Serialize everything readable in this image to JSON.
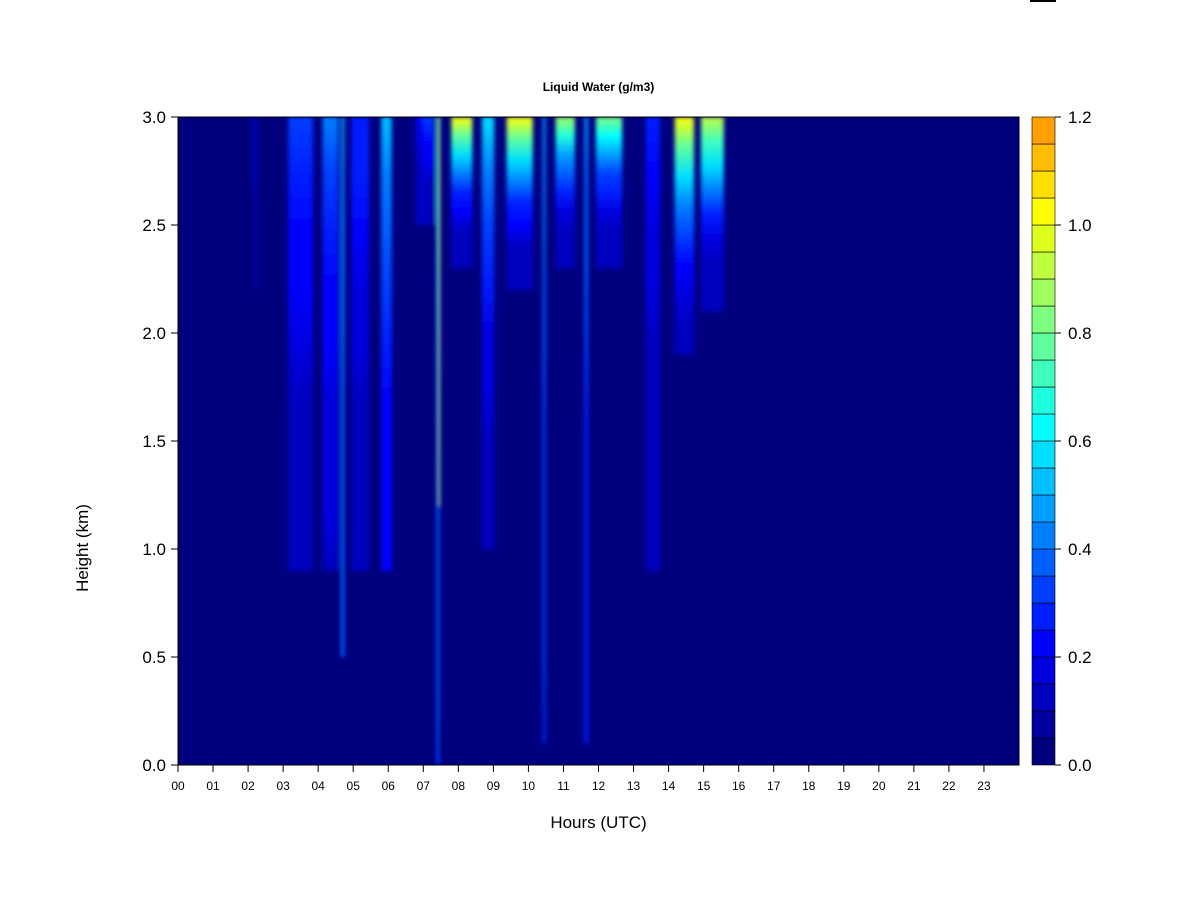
{
  "chart_data": {
    "type": "heatmap",
    "title": "Liquid Water (g/m3)",
    "xlabel": "Hours (UTC)",
    "ylabel": "Height (km)",
    "x_tick_labels": [
      "00",
      "01",
      "02",
      "03",
      "04",
      "05",
      "06",
      "07",
      "08",
      "09",
      "10",
      "11",
      "12",
      "13",
      "14",
      "15",
      "16",
      "17",
      "18",
      "19",
      "20",
      "21",
      "22",
      "23"
    ],
    "y_tick_labels": [
      "0.0",
      "0.5",
      "1.0",
      "1.5",
      "2.0",
      "2.5",
      "3.0"
    ],
    "xlim": [
      0,
      24
    ],
    "ylim": [
      0,
      3.0
    ],
    "colorbar": {
      "min": 0.0,
      "max": 1.2,
      "step": 0.05,
      "tick_labels": [
        "0.0",
        "0.2",
        "0.4",
        "0.6",
        "0.8",
        "1.0",
        "1.2"
      ],
      "colors": [
        "#00007f",
        "#00009f",
        "#0000bf",
        "#0000df",
        "#0000ff",
        "#001fff",
        "#003fff",
        "#005fff",
        "#007fff",
        "#009fff",
        "#00bfff",
        "#00dfff",
        "#00ffff",
        "#1fffdf",
        "#3fffbf",
        "#5fff9f",
        "#7fff7f",
        "#9fff5f",
        "#bfff3f",
        "#dfff1f",
        "#ffff00",
        "#ffdf00",
        "#ffbf00",
        "#ff9f00",
        "#ff7f00",
        "#ff5f00",
        "#ff3f00",
        "#ff1f00",
        "#ff0000",
        "#df0000",
        "#bf0000",
        "#9f0000",
        "#7f0000"
      ]
    },
    "background_value": 0.0,
    "features": [
      {
        "kind": "column",
        "hour": 2.2,
        "width": 0.12,
        "base_km": 2.2,
        "top_value": 0.15,
        "low_value": 0.08
      },
      {
        "kind": "column",
        "hour": 3.5,
        "width": 0.7,
        "base_km": 0.9,
        "top_value": 0.35,
        "low_value": 0.12
      },
      {
        "kind": "column",
        "hour": 4.35,
        "width": 0.45,
        "base_km": 0.9,
        "top_value": 0.4,
        "low_value": 0.15
      },
      {
        "kind": "column",
        "hour": 4.7,
        "width": 0.1,
        "base_km": 0.5,
        "top_value": 0.45,
        "low_value": 0.38
      },
      {
        "kind": "column",
        "hour": 5.2,
        "width": 0.5,
        "base_km": 0.9,
        "top_value": 0.3,
        "low_value": 0.12
      },
      {
        "kind": "column",
        "hour": 5.95,
        "width": 0.3,
        "base_km": 0.9,
        "top_value": 0.5,
        "low_value": 0.2
      },
      {
        "kind": "column",
        "hour": 6.9,
        "width": 0.25,
        "base_km": 2.5,
        "top_value": 0.2,
        "low_value": 0.1
      },
      {
        "kind": "column",
        "hour": 7.15,
        "width": 0.3,
        "base_km": 2.5,
        "top_value": 0.35,
        "low_value": 0.12
      },
      {
        "kind": "column",
        "hour": 7.42,
        "width": 0.08,
        "base_km": 0.0,
        "top_value": 0.7,
        "low_value": 0.35
      },
      {
        "kind": "column",
        "hour": 7.45,
        "width": 0.04,
        "base_km": 1.2,
        "top_value": 0.9,
        "low_value": 0.9
      },
      {
        "kind": "column",
        "hour": 8.1,
        "width": 0.6,
        "base_km": 2.3,
        "top_value": 1.0,
        "low_value": 0.1
      },
      {
        "kind": "column",
        "hour": 8.85,
        "width": 0.35,
        "base_km": 1.0,
        "top_value": 0.55,
        "low_value": 0.1
      },
      {
        "kind": "column",
        "hour": 9.75,
        "width": 0.75,
        "base_km": 2.2,
        "top_value": 1.0,
        "low_value": 0.1
      },
      {
        "kind": "column",
        "hour": 10.45,
        "width": 0.08,
        "base_km": 0.1,
        "top_value": 0.45,
        "low_value": 0.3
      },
      {
        "kind": "column",
        "hour": 11.05,
        "width": 0.55,
        "base_km": 2.3,
        "top_value": 0.85,
        "low_value": 0.1
      },
      {
        "kind": "column",
        "hour": 11.65,
        "width": 0.1,
        "base_km": 0.1,
        "top_value": 0.45,
        "low_value": 0.25
      },
      {
        "kind": "column",
        "hour": 12.3,
        "width": 0.75,
        "base_km": 2.3,
        "top_value": 0.8,
        "low_value": 0.1
      },
      {
        "kind": "column",
        "hour": 13.55,
        "width": 0.4,
        "base_km": 0.9,
        "top_value": 0.25,
        "low_value": 0.1
      },
      {
        "kind": "column",
        "hour": 14.45,
        "width": 0.55,
        "base_km": 1.9,
        "top_value": 1.0,
        "low_value": 0.12
      },
      {
        "kind": "column",
        "hour": 15.25,
        "width": 0.65,
        "base_km": 2.1,
        "top_value": 0.95,
        "low_value": 0.1
      }
    ]
  }
}
